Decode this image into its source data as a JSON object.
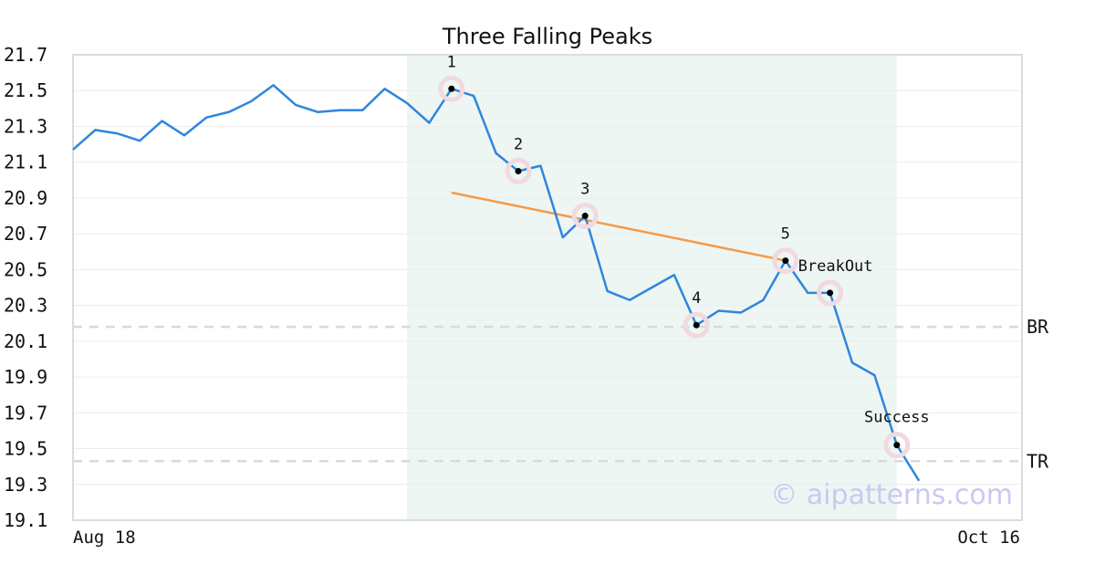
{
  "chart_data": {
    "type": "line",
    "title": "Three Falling Peaks",
    "xlabel": "",
    "ylabel": "",
    "ylim": [
      19.1,
      21.7
    ],
    "yticks": [
      "21.7",
      "21.5",
      "21.3",
      "21.1",
      "20.9",
      "20.7",
      "20.5",
      "20.3",
      "20.1",
      "19.9",
      "19.7",
      "19.5",
      "19.3",
      "19.1"
    ],
    "xtick_labels": [
      {
        "index": 0,
        "label": "Aug 18"
      },
      {
        "index": 43,
        "label": "Oct 16"
      }
    ],
    "grid": "horizontal",
    "series": [
      {
        "color": "#2e86de",
        "values": [
          21.17,
          21.28,
          21.26,
          21.22,
          21.33,
          21.25,
          21.35,
          21.38,
          21.44,
          21.53,
          21.42,
          21.38,
          21.39,
          21.39,
          21.51,
          21.43,
          21.32,
          21.51,
          21.47,
          21.15,
          21.05,
          21.08,
          20.68,
          20.8,
          20.38,
          20.33,
          20.4,
          20.47,
          20.19,
          20.27,
          20.26,
          20.33,
          20.55,
          20.37,
          20.37,
          19.98,
          19.91,
          19.52,
          19.32
        ]
      }
    ],
    "pattern_zone": {
      "start_index": 15,
      "end_index": 37,
      "color": "#eef6f3"
    },
    "trend_line": {
      "color": "#f59a48",
      "points": [
        {
          "index": 17,
          "value": 20.93
        },
        {
          "index": 32,
          "value": 20.55
        }
      ]
    },
    "markers": [
      {
        "index": 17,
        "value": 21.51,
        "label": "1"
      },
      {
        "index": 20,
        "value": 21.05,
        "label": "2"
      },
      {
        "index": 23,
        "value": 20.8,
        "label": "3"
      },
      {
        "index": 28,
        "value": 20.19,
        "label": "4"
      },
      {
        "index": 32,
        "value": 20.55,
        "label": "5"
      },
      {
        "index": 34,
        "value": 20.37,
        "label": "BreakOut"
      },
      {
        "index": 37,
        "value": 19.52,
        "label": "Success"
      }
    ],
    "hlines": [
      {
        "value": 20.18,
        "label": "BR"
      },
      {
        "value": 19.43,
        "label": "TR"
      }
    ]
  },
  "watermark": "© aipatterns.com"
}
